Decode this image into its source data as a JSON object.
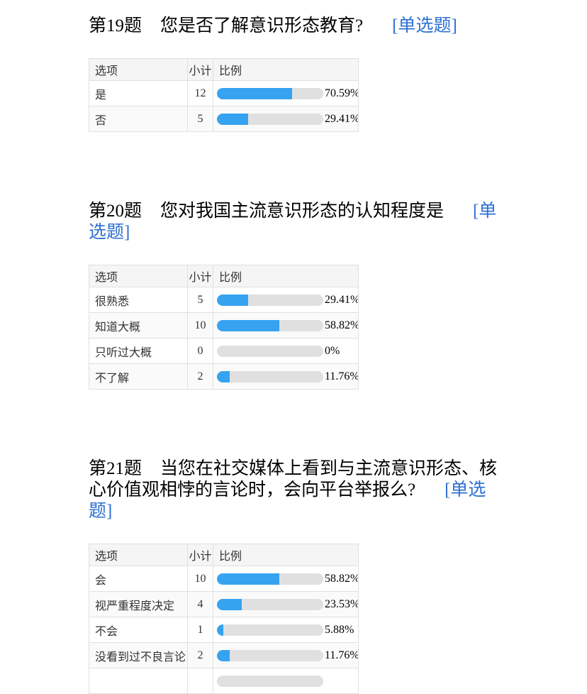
{
  "colors": {
    "bar_fill": "#36a3f0",
    "bar_track": "#e0e0e0",
    "type_label_blue": "#2d6fd2",
    "table_border": "#e0e0e0",
    "header_row_bg": "#f5f5f5",
    "zebra_row_bg": "#fafafa"
  },
  "header_labels": {
    "option": "选项",
    "count": "小计",
    "ratio": "比例"
  },
  "questions": [
    {
      "num": "第19题",
      "text": "您是否了解意识形态教育?",
      "type_label": "[单选题]",
      "rows": [
        {
          "option": "是",
          "count": "12",
          "percent_label": "70.59%",
          "percent": 70.59
        },
        {
          "option": "否",
          "count": "5",
          "percent_label": "29.41%",
          "percent": 29.41
        }
      ]
    },
    {
      "num": "第20题",
      "text": "您对我国主流意识形态的认知程度是",
      "type_label": "[单选题]",
      "rows": [
        {
          "option": "很熟悉",
          "count": "5",
          "percent_label": "29.41%",
          "percent": 29.41
        },
        {
          "option": "知道大概",
          "count": "10",
          "percent_label": "58.82%",
          "percent": 58.82
        },
        {
          "option": "只听过大概",
          "count": "0",
          "percent_label": "0%",
          "percent": 0
        },
        {
          "option": "不了解",
          "count": "2",
          "percent_label": "11.76%",
          "percent": 11.76
        }
      ]
    },
    {
      "num": "第21题",
      "text": "当您在社交媒体上看到与主流意识形态、核心价值观相悖的言论时，会向平台举报么?",
      "type_label": "[单选题]",
      "rows": [
        {
          "option": "会",
          "count": "10",
          "percent_label": "58.82%",
          "percent": 58.82
        },
        {
          "option": "视严重程度决定",
          "count": "4",
          "percent_label": "23.53%",
          "percent": 23.53
        },
        {
          "option": "不会",
          "count": "1",
          "percent_label": "5.88%",
          "percent": 5.88
        },
        {
          "option": "没看到过不良言论",
          "count": "2",
          "percent_label": "11.76%",
          "percent": 11.76
        },
        {
          "option": "",
          "count": "",
          "percent_label": "",
          "percent": 0
        }
      ]
    }
  ],
  "chart_data": [
    {
      "type": "bar",
      "title": "第19题 您是否了解意识形态教育? [单选题]",
      "categories": [
        "是",
        "否"
      ],
      "series": [
        {
          "name": "小计",
          "values": [
            12,
            5
          ]
        },
        {
          "name": "比例(%)",
          "values": [
            70.59,
            29.41
          ]
        }
      ],
      "xlabel": "选项",
      "ylabel": "比例",
      "ylim": [
        0,
        100
      ]
    },
    {
      "type": "bar",
      "title": "第20题 您对我国主流意识形态的认知程度是 [单选题]",
      "categories": [
        "很熟悉",
        "知道大概",
        "只听过大概",
        "不了解"
      ],
      "series": [
        {
          "name": "小计",
          "values": [
            5,
            10,
            0,
            2
          ]
        },
        {
          "name": "比例(%)",
          "values": [
            29.41,
            58.82,
            0,
            11.76
          ]
        }
      ],
      "xlabel": "选项",
      "ylabel": "比例",
      "ylim": [
        0,
        100
      ]
    },
    {
      "type": "bar",
      "title": "第21题 当您在社交媒体上看到与主流意识形态、核心价值观相悖的言论时，会向平台举报么? [单选题]",
      "categories": [
        "会",
        "视严重程度决定",
        "不会",
        "没看到过不良言论"
      ],
      "series": [
        {
          "name": "小计",
          "values": [
            10,
            4,
            1,
            2
          ]
        },
        {
          "name": "比例(%)",
          "values": [
            58.82,
            23.53,
            5.88,
            11.76
          ]
        }
      ],
      "xlabel": "选项",
      "ylabel": "比例",
      "ylim": [
        0,
        100
      ]
    }
  ]
}
